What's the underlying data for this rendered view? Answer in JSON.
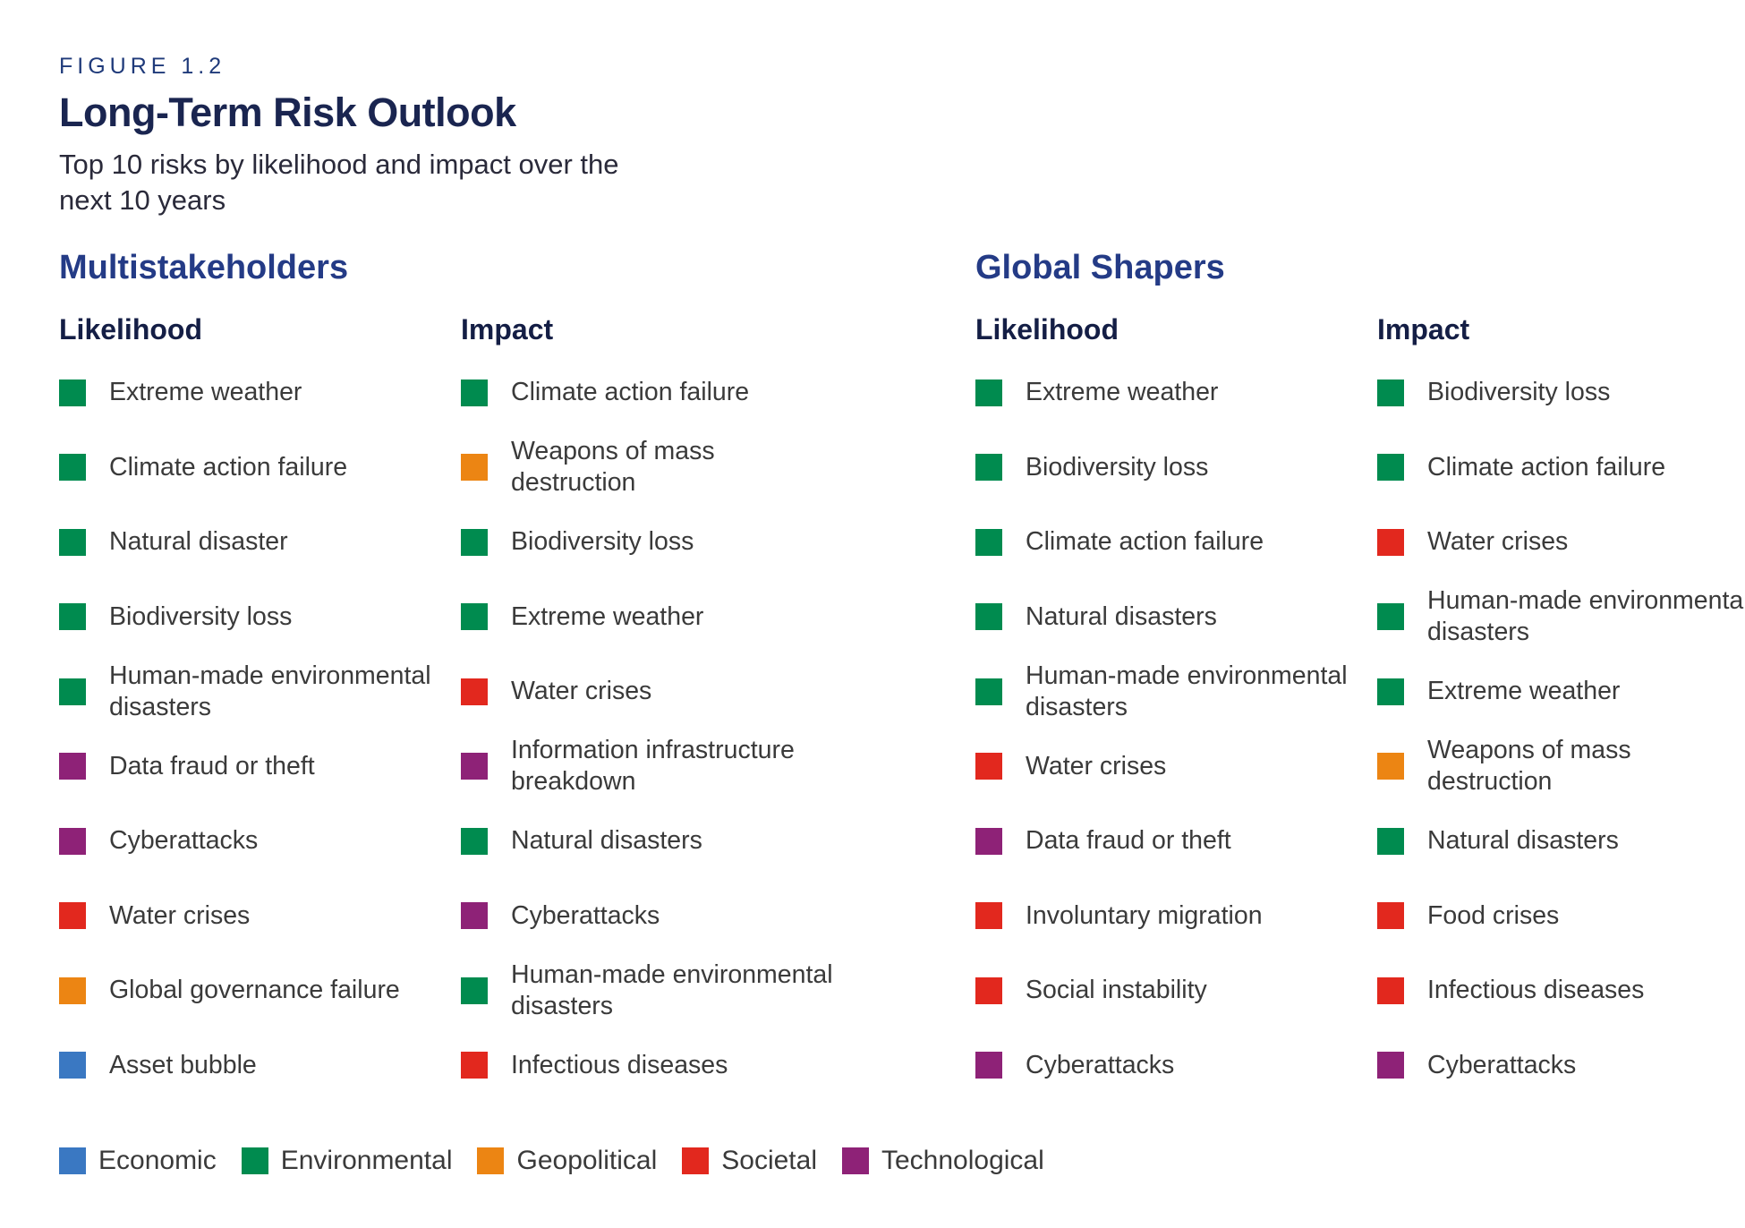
{
  "figure_label": "FIGURE 1.2",
  "title": "Long-Term Risk Outlook",
  "subtitle": "Top 10 risks by likelihood and impact over the next 10 years",
  "categories": {
    "economic": {
      "label": "Economic",
      "color": "#3a78c2"
    },
    "environmental": {
      "label": "Environmental",
      "color": "#008b4f"
    },
    "geopolitical": {
      "label": "Geopolitical",
      "color": "#ec8513"
    },
    "societal": {
      "label": "Societal",
      "color": "#e2281e"
    },
    "technological": {
      "label": "Technological",
      "color": "#8e2277"
    }
  },
  "groups": [
    {
      "title": "Multistakeholders",
      "columns": [
        {
          "heading": "Likelihood",
          "items": [
            {
              "label": "Extreme weather",
              "category": "environmental"
            },
            {
              "label": "Climate action failure",
              "category": "environmental"
            },
            {
              "label": "Natural disaster",
              "category": "environmental"
            },
            {
              "label": "Biodiversity loss",
              "category": "environmental"
            },
            {
              "label": "Human-made environmental disasters",
              "category": "environmental"
            },
            {
              "label": "Data fraud or theft",
              "category": "technological"
            },
            {
              "label": "Cyberattacks",
              "category": "technological"
            },
            {
              "label": "Water crises",
              "category": "societal"
            },
            {
              "label": "Global governance failure",
              "category": "geopolitical"
            },
            {
              "label": "Asset bubble",
              "category": "economic"
            }
          ]
        },
        {
          "heading": "Impact",
          "items": [
            {
              "label": "Climate action failure",
              "category": "environmental"
            },
            {
              "label": "Weapons of mass destruction",
              "category": "geopolitical"
            },
            {
              "label": "Biodiversity loss",
              "category": "environmental"
            },
            {
              "label": "Extreme weather",
              "category": "environmental"
            },
            {
              "label": "Water crises",
              "category": "societal"
            },
            {
              "label": "Information infrastructure breakdown",
              "category": "technological"
            },
            {
              "label": "Natural disasters",
              "category": "environmental"
            },
            {
              "label": "Cyberattacks",
              "category": "technological"
            },
            {
              "label": "Human-made environmental disasters",
              "category": "environmental"
            },
            {
              "label": "Infectious diseases",
              "category": "societal"
            }
          ]
        }
      ]
    },
    {
      "title": "Global Shapers",
      "columns": [
        {
          "heading": "Likelihood",
          "items": [
            {
              "label": "Extreme weather",
              "category": "environmental"
            },
            {
              "label": "Biodiversity loss",
              "category": "environmental"
            },
            {
              "label": "Climate action failure",
              "category": "environmental"
            },
            {
              "label": "Natural disasters",
              "category": "environmental"
            },
            {
              "label": "Human-made environmental disasters",
              "category": "environmental"
            },
            {
              "label": "Water crises",
              "category": "societal"
            },
            {
              "label": "Data fraud or theft",
              "category": "technological"
            },
            {
              "label": "Involuntary migration",
              "category": "societal"
            },
            {
              "label": "Social instability",
              "category": "societal"
            },
            {
              "label": "Cyberattacks",
              "category": "technological"
            }
          ]
        },
        {
          "heading": "Impact",
          "items": [
            {
              "label": "Biodiversity loss",
              "category": "environmental"
            },
            {
              "label": "Climate action failure",
              "category": "environmental"
            },
            {
              "label": "Water crises",
              "category": "societal"
            },
            {
              "label": "Human-made environmental disasters",
              "category": "environmental"
            },
            {
              "label": "Extreme weather",
              "category": "environmental"
            },
            {
              "label": "Weapons of mass destruction",
              "category": "geopolitical"
            },
            {
              "label": "Natural disasters",
              "category": "environmental"
            },
            {
              "label": "Food crises",
              "category": "societal"
            },
            {
              "label": "Infectious diseases",
              "category": "societal"
            },
            {
              "label": "Cyberattacks",
              "category": "technological"
            }
          ]
        }
      ]
    }
  ],
  "legend": [
    "economic",
    "environmental",
    "geopolitical",
    "societal",
    "technological"
  ]
}
